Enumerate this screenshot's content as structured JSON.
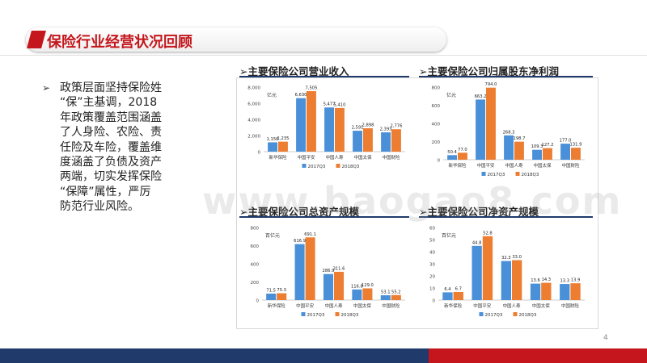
{
  "page_title": "保险行业经营状况回顾",
  "bullet_symbol": "➢",
  "bullet_text": "政策层面坚持保险姓\n“保”主基调，2018\n年政策覆盖范围涵盖\n了人身险、农险、责\n任险及车险，覆盖维\n度涵盖了负债及资产\n两端，切实发挥保险\n“保障”属性，严厉\n防范行业风险。",
  "watermark": "www.baogao8.com",
  "page_number": "4",
  "colors": {
    "series_2017": "#4a90d9",
    "series_2018": "#ed7d31",
    "title_red": "#c4161c",
    "navy": "#1f3a6b"
  },
  "chart_data": [
    {
      "type": "bar",
      "title": "➢主要保险公司营业收入",
      "unit": "亿元",
      "categories": [
        "新华保险",
        "中国平安",
        "中国人寿",
        "中国太保",
        "中国财险"
      ],
      "series": [
        {
          "name": "2017Q3",
          "values": [
            1156,
            6630,
            5477,
            2591,
            2393
          ]
        },
        {
          "name": "2018Q3",
          "values": [
            1235,
            7505,
            5410,
            2898,
            2776
          ]
        }
      ],
      "data_labels": {
        "2017Q3": [
          "1,156",
          "6,630",
          "5,477",
          "2,591",
          "2,393"
        ],
        "2018Q3": [
          "1,235",
          "7,505",
          "5,410",
          "2,898",
          "2,776"
        ]
      },
      "yticks": [
        "0",
        "2,000",
        "4,000",
        "6,000",
        "8,000"
      ],
      "ylim": [
        0,
        8000
      ],
      "legend": "bottom"
    },
    {
      "type": "bar",
      "title": "➢主要保险公司归属股东净利润",
      "unit": "亿元",
      "categories": [
        "新华保险",
        "中国平安",
        "中国人寿",
        "中国太保",
        "中国财险"
      ],
      "series": [
        {
          "name": "2017Q3",
          "values": [
            50.4,
            663.2,
            268.3,
            109.3,
            177.0
          ]
        },
        {
          "name": "2018Q3",
          "values": [
            77.0,
            794.0,
            198.7,
            127.2,
            131.9
          ]
        }
      ],
      "data_labels": {
        "2017Q3": [
          "50.4",
          "663.2",
          "268.3",
          "109.3",
          "177.0"
        ],
        "2018Q3": [
          "77.0",
          "794.0",
          "198.7",
          "127.2",
          "131.9"
        ]
      },
      "yticks": [
        "0",
        "200",
        "400",
        "600",
        "800"
      ],
      "ylim": [
        0,
        800
      ],
      "legend": "bottom"
    },
    {
      "type": "bar",
      "title": "➢主要保险公司总资产规模",
      "unit": "百亿元",
      "categories": [
        "新华保险",
        "中国平安",
        "中国人寿",
        "中国太保",
        "中国财险"
      ],
      "series": [
        {
          "name": "2017Q3",
          "values": [
            71.5,
            616.9,
            286.9,
            116.8,
            53.1
          ]
        },
        {
          "name": "2018Q3",
          "values": [
            75.3,
            691.1,
            311.6,
            129.0,
            55.2
          ]
        }
      ],
      "data_labels": {
        "2017Q3": [
          "71.5",
          "616.9",
          "286.9",
          "116.8",
          "53.1"
        ],
        "2018Q3": [
          "75.3",
          "691.1",
          "311.6",
          "129.0",
          "55.2"
        ]
      },
      "yticks": [
        "0",
        "200",
        "400",
        "600",
        "800"
      ],
      "ylim": [
        0,
        800
      ],
      "legend": "bottom"
    },
    {
      "type": "bar",
      "title": "➢主要保险公司净资产规模",
      "unit": "百亿元",
      "categories": [
        "新华保险",
        "中国平安",
        "中国人寿",
        "中国太保",
        "中国财险"
      ],
      "series": [
        {
          "name": "2017Q3",
          "values": [
            6.4,
            44.8,
            32.3,
            13.6,
            13.3
          ]
        },
        {
          "name": "2018Q3",
          "values": [
            6.7,
            52.8,
            33.0,
            14.3,
            13.9
          ]
        }
      ],
      "data_labels": {
        "2017Q3": [
          "6.4",
          "44.8",
          "32.3",
          "13.6",
          "13.3"
        ],
        "2018Q3": [
          "6.7",
          "52.8",
          "33.0",
          "14.3",
          "13.9"
        ]
      },
      "yticks": [
        "0",
        "10",
        "20",
        "30",
        "40",
        "50",
        "60"
      ],
      "ylim": [
        0,
        60
      ],
      "legend": "bottom"
    }
  ]
}
